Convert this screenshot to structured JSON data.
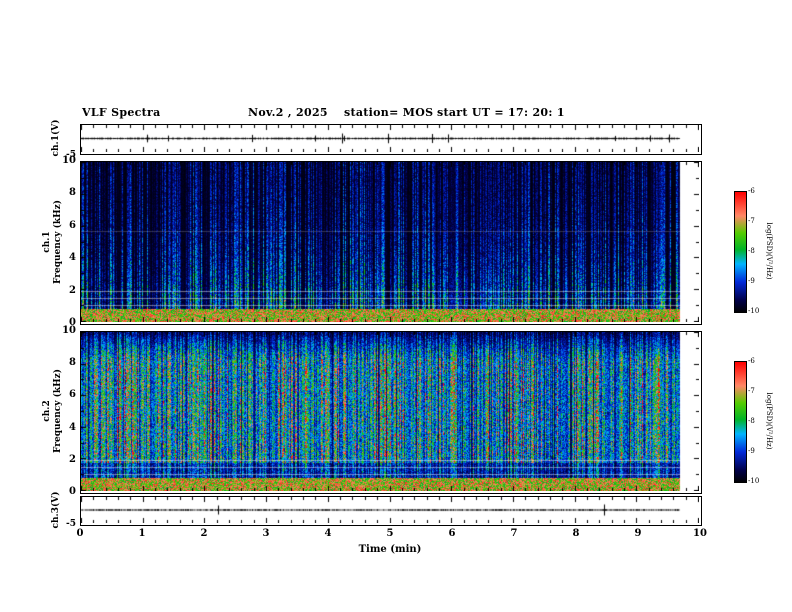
{
  "header": {
    "title": "VLF Spectra",
    "date": "Nov.2  , 2025",
    "station": "station= MOS",
    "start_ut": "start UT  =   17: 20: 1"
  },
  "panels": {
    "ch1_voltage": {
      "ylabel": "ch.1(V)",
      "ymin_label": "-5"
    },
    "ch1_spec": {
      "ylabel_line1": "ch.1",
      "ylabel_line2": "Frequency (kHz)",
      "ytick_labels": [
        "10",
        "8",
        "6",
        "4",
        "2",
        "0"
      ]
    },
    "ch2_spec": {
      "ylabel_line1": "ch.2",
      "ylabel_line2": "Frequency (kHz)",
      "ytick_labels": [
        "10",
        "8",
        "6",
        "4",
        "2",
        "0"
      ]
    },
    "ch3_voltage": {
      "ylabel": "ch.3(V)",
      "ymin_label": "-5"
    }
  },
  "xaxis": {
    "label": "Time (min)",
    "tick_labels": [
      "0",
      "1",
      "2",
      "3",
      "4",
      "5",
      "6",
      "7",
      "8",
      "9",
      "10"
    ],
    "min": 0,
    "max": 10
  },
  "colorbar": {
    "label": "log(PSD)(V²/Hz)",
    "tick_labels": [
      "-6",
      "-7",
      "-8",
      "-9",
      "-10"
    ],
    "max": -6,
    "min": -10
  },
  "colormap_stops": [
    {
      "p": 0.0,
      "c": "#000003"
    },
    {
      "p": 0.1,
      "c": "#00004a"
    },
    {
      "p": 0.25,
      "c": "#0028d8"
    },
    {
      "p": 0.4,
      "c": "#00b4ff"
    },
    {
      "p": 0.52,
      "c": "#00b428"
    },
    {
      "p": 0.66,
      "c": "#55cc00"
    },
    {
      "p": 0.8,
      "c": "#ff8866"
    },
    {
      "p": 1.0,
      "c": "#ff0000"
    }
  ],
  "chart_data": [
    {
      "id": "ch1_waveform",
      "type": "line",
      "ylabel": "ch.1(V)",
      "xlim": [
        0,
        10
      ],
      "ylim": [
        -5,
        5
      ],
      "description": "near-flat waveform at 0 V with tiny impulses, recording ends at ~9.7 min",
      "seed": 11,
      "data_end": 0.97,
      "noise_amp": 0.8,
      "spike_prob": 0.01
    },
    {
      "id": "ch1_spectrogram",
      "type": "heatmap",
      "xlim": [
        0,
        10
      ],
      "ylim_khz": [
        0,
        10
      ],
      "zlabel": "log(PSD)(V²/Hz)",
      "zlim": [
        -10,
        -6
      ],
      "profile": "ch1",
      "seed": 42,
      "streak_density": 0.38,
      "mid_density": 0.25,
      "base": 0.14,
      "low_band_khz": 0.85,
      "hlines_khz": [
        1.05,
        1.5,
        1.95,
        5.7
      ],
      "data_end": 0.97,
      "description": "dense broadband vertical sferic streaks on dark background, bright band below 1 kHz, narrow horizontal interference lines"
    },
    {
      "id": "ch2_spectrogram",
      "type": "heatmap",
      "xlim": [
        0,
        10
      ],
      "ylim_khz": [
        0,
        10
      ],
      "zlabel": "log(PSD)(V²/Hz)",
      "zlim": [
        -10,
        -6
      ],
      "profile": "ch2",
      "seed": 77,
      "streak_density": 0.55,
      "mid_density": 0.3,
      "base": 0.3,
      "low_band_khz": 0.85,
      "hlines_khz": [
        1.05,
        1.5,
        1.95
      ],
      "data_end": 0.97,
      "description": "stronger overall intensity, mostly green with red speckles between ~2 and 8 kHz, darker above 9 kHz"
    },
    {
      "id": "ch3_waveform",
      "type": "line",
      "ylabel": "ch.3(V)",
      "xlim": [
        0,
        10
      ],
      "ylim": [
        -5,
        5
      ],
      "description": "near-flat waveform at 0 V, recording ends at ~9.7 min",
      "seed": 99,
      "data_end": 0.97,
      "noise_amp": 0.7,
      "spike_prob": 0.008
    }
  ]
}
